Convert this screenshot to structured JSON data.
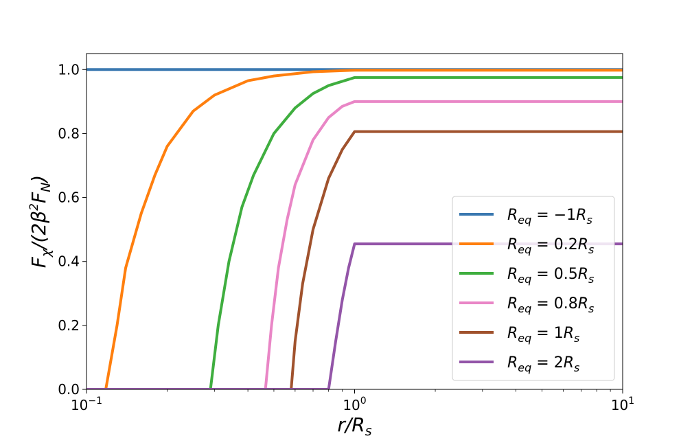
{
  "chart_data": {
    "type": "line",
    "xlabel": "r/R_s",
    "ylabel": "F_χ/(2β²F_N)",
    "x_scale": "log",
    "xlim": [
      0.1,
      10
    ],
    "ylim": [
      0.0,
      1.05
    ],
    "grid": false,
    "legend_position": "lower-right",
    "x_ticks": [
      {
        "value": 0.1,
        "base": "10",
        "exp": "−1"
      },
      {
        "value": 1,
        "base": "10",
        "exp": "0"
      },
      {
        "value": 10,
        "base": "10",
        "exp": "1"
      }
    ],
    "y_ticks": [
      {
        "value": 0.0,
        "label": "0.0"
      },
      {
        "value": 0.2,
        "label": "0.2"
      },
      {
        "value": 0.4,
        "label": "0.4"
      },
      {
        "value": 0.6,
        "label": "0.6"
      },
      {
        "value": 0.8,
        "label": "0.8"
      },
      {
        "value": 1.0,
        "label": "1.0"
      }
    ],
    "series": [
      {
        "name": "R_eq = −1R_s",
        "legend_value": "−1",
        "color": "#3a78b0",
        "points": [
          [
            0.1,
            1.0
          ],
          [
            1.0,
            1.0
          ],
          [
            10,
            1.0
          ]
        ]
      },
      {
        "name": "R_eq = 0.2R_s",
        "legend_value": "0.2",
        "color": "#ff7f0e",
        "points": [
          [
            0.118,
            0.0
          ],
          [
            0.13,
            0.2
          ],
          [
            0.14,
            0.38
          ],
          [
            0.16,
            0.55
          ],
          [
            0.18,
            0.67
          ],
          [
            0.2,
            0.76
          ],
          [
            0.25,
            0.87
          ],
          [
            0.3,
            0.92
          ],
          [
            0.4,
            0.965
          ],
          [
            0.5,
            0.98
          ],
          [
            0.7,
            0.993
          ],
          [
            1.0,
            0.998
          ],
          [
            10,
            0.998
          ]
        ]
      },
      {
        "name": "R_eq = 0.5R_s",
        "legend_value": "0.5",
        "color": "#3fae3f",
        "points": [
          [
            0.29,
            0.0
          ],
          [
            0.31,
            0.2
          ],
          [
            0.34,
            0.4
          ],
          [
            0.38,
            0.57
          ],
          [
            0.42,
            0.67
          ],
          [
            0.5,
            0.8
          ],
          [
            0.6,
            0.88
          ],
          [
            0.7,
            0.925
          ],
          [
            0.8,
            0.95
          ],
          [
            1.0,
            0.975
          ],
          [
            10,
            0.975
          ]
        ]
      },
      {
        "name": "R_eq = 0.8R_s",
        "legend_value": "0.8",
        "color": "#e986c6",
        "points": [
          [
            0.465,
            0.0
          ],
          [
            0.49,
            0.2
          ],
          [
            0.52,
            0.38
          ],
          [
            0.56,
            0.53
          ],
          [
            0.6,
            0.64
          ],
          [
            0.7,
            0.78
          ],
          [
            0.8,
            0.85
          ],
          [
            0.9,
            0.885
          ],
          [
            1.0,
            0.9
          ],
          [
            10,
            0.9
          ]
        ]
      },
      {
        "name": "R_eq = 1R_s",
        "legend_value": "1",
        "color": "#a0522d",
        "points": [
          [
            0.58,
            0.0
          ],
          [
            0.6,
            0.15
          ],
          [
            0.64,
            0.33
          ],
          [
            0.7,
            0.5
          ],
          [
            0.8,
            0.66
          ],
          [
            0.9,
            0.75
          ],
          [
            1.0,
            0.806
          ],
          [
            10,
            0.806
          ]
        ]
      },
      {
        "name": "R_eq = 2R_s",
        "legend_value": "2",
        "color": "#9355a8",
        "points": [
          [
            0.1,
            0.0
          ],
          [
            0.8,
            0.0
          ],
          [
            0.85,
            0.15
          ],
          [
            0.9,
            0.28
          ],
          [
            0.95,
            0.38
          ],
          [
            1.0,
            0.455
          ],
          [
            10,
            0.455
          ]
        ]
      }
    ]
  }
}
